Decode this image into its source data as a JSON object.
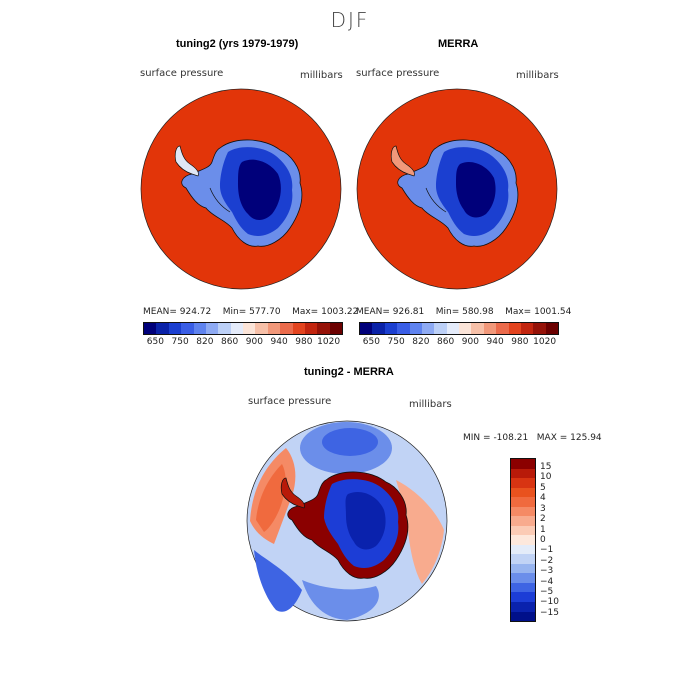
{
  "title": "DJF",
  "panels": [
    {
      "heading": "tuning2 (yrs 1979-1979)",
      "variable": "surface pressure",
      "units": "millibars",
      "mean_label": "MEAN=",
      "mean": "924.72",
      "min_label": "Min=",
      "min": "577.70",
      "max_label": "Max=",
      "max": "1003.22"
    },
    {
      "heading": "MERRA",
      "variable": "surface pressure",
      "units": "millibars",
      "mean_label": "MEAN=",
      "mean": "926.81",
      "min_label": "Min=",
      "min": "580.98",
      "max_label": "Max=",
      "max": "1001.54"
    }
  ],
  "abs_colorbar": {
    "colors": [
      "#00007a",
      "#0a22a8",
      "#1b3fd0",
      "#3a5ee6",
      "#5f83ef",
      "#8eaaf3",
      "#bcd0f7",
      "#e4ebfa",
      "#fbe4d8",
      "#f7c0a8",
      "#f1987a",
      "#eb6b4c",
      "#e3441f",
      "#c2250f",
      "#951208",
      "#6b0000"
    ],
    "ticks": [
      "650",
      "750",
      "820",
      "860",
      "900",
      "940",
      "980",
      "1020"
    ]
  },
  "diff_panel": {
    "heading": "tuning2 - MERRA",
    "variable": "surface pressure",
    "units": "millibars",
    "min_label": "MIN =",
    "min": "-108.21",
    "max_label": "MAX =",
    "max": "125.94"
  },
  "diff_colorbar": {
    "colors": [
      "#8b0000",
      "#b81a09",
      "#d83412",
      "#e9521e",
      "#f06a3e",
      "#f58a65",
      "#f8ab8e",
      "#fbcbb5",
      "#fde8dc",
      "#e4ecf9",
      "#c1d3f5",
      "#97b4ef",
      "#6b8eea",
      "#3e64e3",
      "#1c3dd6",
      "#0a22ad",
      "#00108a"
    ],
    "ticks": [
      "15",
      "10",
      "5",
      "4",
      "3",
      "2",
      "1",
      "0",
      "−1",
      "−2",
      "−3",
      "−4",
      "−5",
      "−10",
      "−15"
    ]
  },
  "map_colors": {
    "ocean_high": "#e23509",
    "ice_low": "#00007a",
    "ice_mid": "#1b3fd0",
    "ice_edge": "#6b8eea",
    "coast": "#000000"
  }
}
